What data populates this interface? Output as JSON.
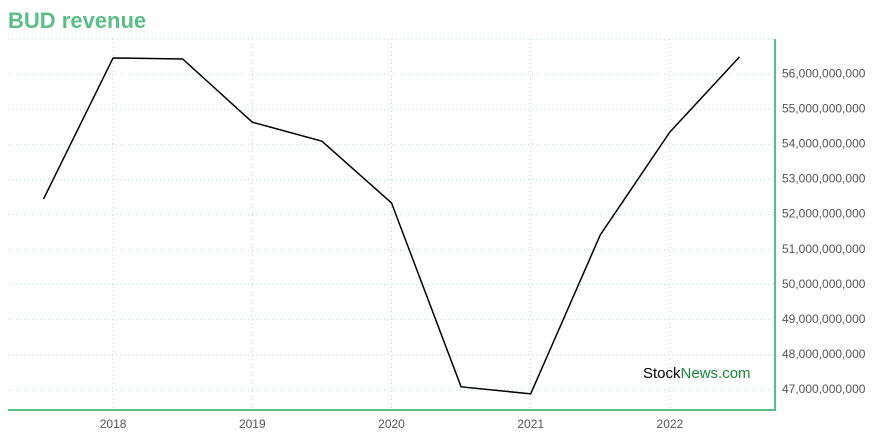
{
  "chart_data": {
    "type": "line",
    "title": "BUD revenue",
    "x": [
      2017.5,
      2018,
      2018.5,
      2019,
      2019.5,
      2020,
      2020.5,
      2021,
      2021.5,
      2022,
      2022.5
    ],
    "values": [
      52440000000,
      56460000000,
      56430000000,
      54630000000,
      54090000000,
      52330000000,
      47090000000,
      46890000000,
      51420000000,
      54350000000,
      56490000000
    ],
    "color": "#000000",
    "xlim": [
      2017.245,
      2022.755
    ],
    "xticks": [
      2018,
      2019,
      2020,
      2021,
      2022
    ],
    "ylim": [
      46430000000,
      57000000000
    ],
    "yticks": [
      {
        "value": 47000000000,
        "label": "47,000,000,000"
      },
      {
        "value": 48000000000,
        "label": "48,000,000,000"
      },
      {
        "value": 49000000000,
        "label": "49,000,000,000"
      },
      {
        "value": 50000000000,
        "label": "50,000,000,000"
      },
      {
        "value": 51000000000,
        "label": "51,000,000,000"
      },
      {
        "value": 52000000000,
        "label": "52,000,000,000"
      },
      {
        "value": 53000000000,
        "label": "53,000,000,000"
      },
      {
        "value": 54000000000,
        "label": "54,000,000,000"
      },
      {
        "value": 55000000000,
        "label": "55,000,000,000"
      },
      {
        "value": 56000000000,
        "label": "56,000,000,000"
      }
    ],
    "grid": true,
    "watermark": [
      "Stock",
      "News.com"
    ]
  }
}
